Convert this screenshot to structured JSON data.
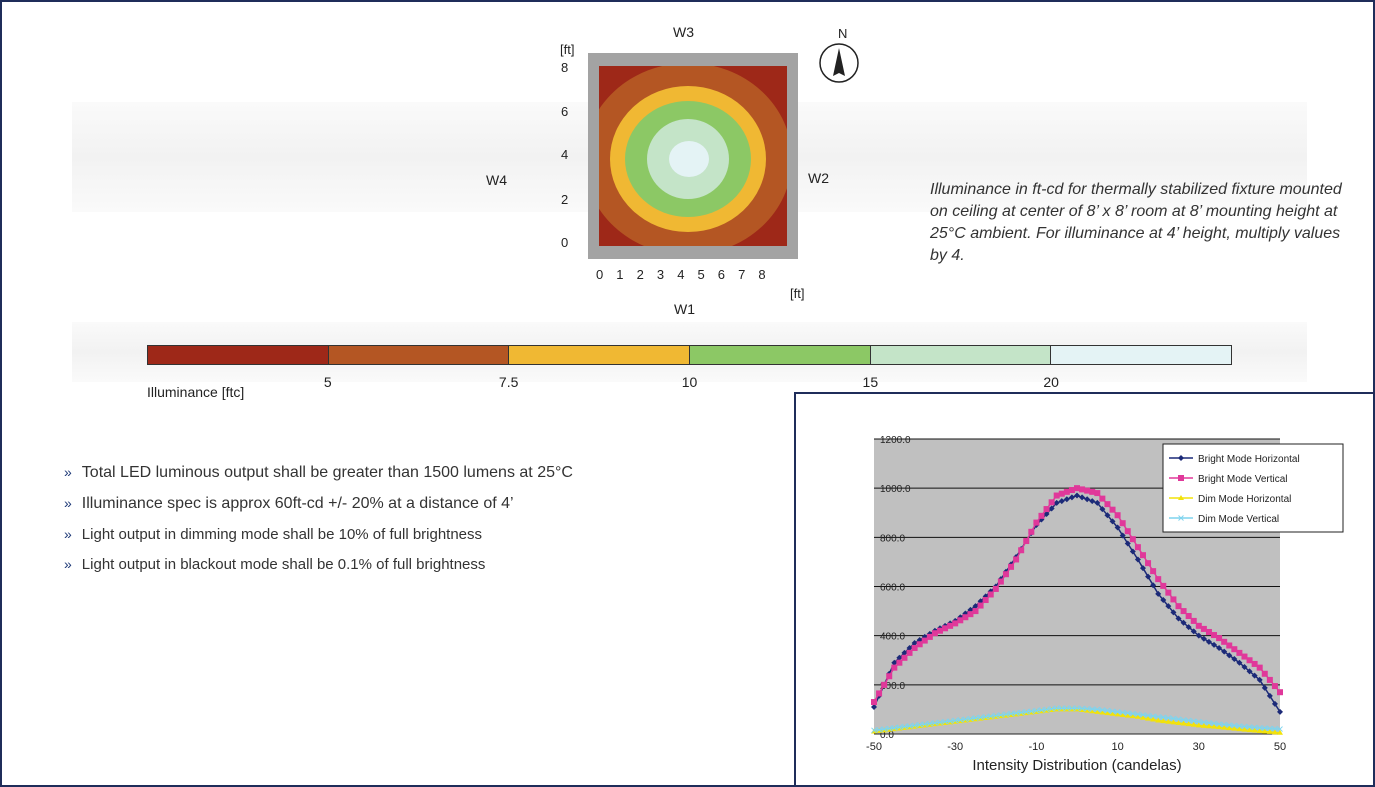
{
  "floor_plan": {
    "walls": {
      "top": "W3",
      "right": "W2",
      "bottom": "W1",
      "left": "W4"
    },
    "unit_label_y": "[ft]",
    "unit_label_x": "[ft]",
    "y_ticks": [
      "8",
      "6",
      "4",
      "2",
      "0"
    ],
    "x_ticks": [
      "0",
      "1",
      "2",
      "3",
      "4",
      "5",
      "6",
      "7",
      "8"
    ],
    "compass_label": "N"
  },
  "caption": "Illuminance in ft-cd for thermally stabilized fixture mounted on ceiling at center of 8’ x 8’ room at 8’ mounting height at 25°C ambient. For illuminance at 4’ height, multiply values by 4.",
  "legend": {
    "title": "Illuminance [ftc]",
    "colors": [
      "#9e2818",
      "#b45623",
      "#f0b833",
      "#8cc865",
      "#c4e4c8",
      "#e4f3f5"
    ],
    "ticks": [
      "5",
      "7.5",
      "10",
      "15",
      "20"
    ]
  },
  "bullets": [
    "Total LED luminous output shall be greater than 1500 lumens at 25°C",
    "Illuminance spec is approx 60ft-cd +/- 20% at a distance of 4’",
    "Light output in dimming mode shall be 10% of full brightness",
    "Light output in blackout mode shall be 0.1% of full brightness"
  ],
  "bullet_marker": "»",
  "chart_data": {
    "type": "line",
    "xlabel": "Intensity Distribution (candelas)",
    "ylabel": "",
    "xlim": [
      -50,
      50
    ],
    "ylim": [
      0,
      1200
    ],
    "x_ticks": [
      -50,
      -30,
      -10,
      10,
      30,
      50
    ],
    "y_ticks": [
      "0.0",
      "200.0",
      "400.0",
      "600.0",
      "800.0",
      "1000.0",
      "1200.0"
    ],
    "grid": true,
    "legend_position": "top-right",
    "x": [
      -50,
      -45,
      -40,
      -35,
      -30,
      -25,
      -20,
      -15,
      -10,
      -5,
      0,
      5,
      10,
      15,
      20,
      25,
      30,
      35,
      40,
      45,
      50
    ],
    "series": [
      {
        "name": "Bright Mode Horizontal",
        "color": "#1c2a78",
        "marker": "diamond",
        "values": [
          110,
          290,
          370,
          420,
          460,
          520,
          600,
          720,
          850,
          940,
          970,
          940,
          840,
          710,
          570,
          470,
          400,
          350,
          290,
          220,
          90
        ]
      },
      {
        "name": "Bright Mode Vertical",
        "color": "#e0389a",
        "marker": "square",
        "values": [
          130,
          270,
          350,
          410,
          450,
          500,
          590,
          710,
          860,
          970,
          1000,
          980,
          890,
          760,
          630,
          520,
          440,
          390,
          330,
          270,
          170
        ]
      },
      {
        "name": "Dim Mode Horizontal",
        "color": "#f2e20a",
        "marker": "triangle",
        "values": [
          10,
          20,
          30,
          40,
          50,
          60,
          70,
          80,
          90,
          100,
          100,
          90,
          80,
          70,
          55,
          45,
          35,
          28,
          20,
          12,
          5
        ]
      },
      {
        "name": "Dim Mode Vertical",
        "color": "#7fd4ee",
        "marker": "x",
        "values": [
          15,
          25,
          35,
          45,
          55,
          65,
          75,
          85,
          95,
          105,
          105,
          100,
          90,
          80,
          70,
          60,
          50,
          40,
          32,
          25,
          20
        ]
      }
    ]
  }
}
